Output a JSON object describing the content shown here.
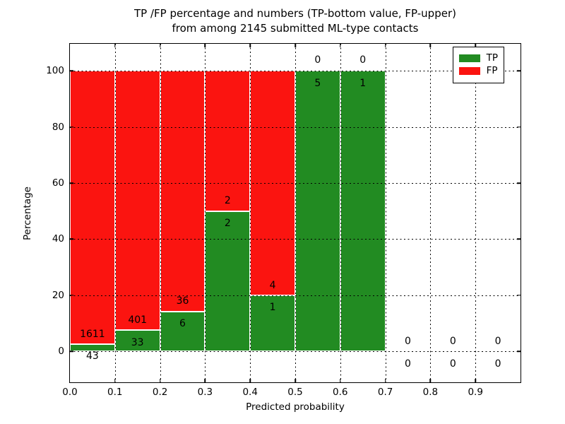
{
  "chart_data": {
    "type": "bar",
    "stacked": true,
    "title_line1": "TP /FP percentage and numbers (TP-bottom value, FP-upper)",
    "title_line2": "from among 2145 submitted ML-type contacts",
    "total_submitted_contacts": 2145,
    "xlabel": "Predicted probability",
    "ylabel": "Percentage",
    "xlim": [
      0.0,
      1.0
    ],
    "ylim": [
      -11,
      109.6
    ],
    "x_ticks": [
      0.0,
      0.1,
      0.2,
      0.3,
      0.4,
      0.5,
      0.6,
      0.7,
      0.8,
      0.9
    ],
    "x_tick_labels": [
      "0.0",
      "0.1",
      "0.2",
      "0.3",
      "0.4",
      "0.5",
      "0.6",
      "0.7",
      "0.8",
      "0.9"
    ],
    "y_ticks": [
      0,
      20,
      40,
      60,
      80,
      100
    ],
    "y_tick_labels": [
      "0",
      "20",
      "40",
      "60",
      "80",
      "100"
    ],
    "grid": true,
    "grid_color": "#000000",
    "bar_edge_color": "#ffffff",
    "colors": {
      "tp": "#228b22",
      "fp": "#fb1410"
    },
    "legend": {
      "position": "upper right",
      "entries": [
        {
          "label": "TP",
          "color": "#228b22"
        },
        {
          "label": "FP",
          "color": "#fb1410"
        }
      ]
    },
    "bins": [
      {
        "x_start": 0.0,
        "x_end": 0.1,
        "tp_count": 43,
        "fp_count": 1611,
        "tp_pct": 2.6,
        "fp_pct": 97.4
      },
      {
        "x_start": 0.1,
        "x_end": 0.2,
        "tp_count": 33,
        "fp_count": 401,
        "tp_pct": 7.6,
        "fp_pct": 92.4
      },
      {
        "x_start": 0.2,
        "x_end": 0.3,
        "tp_count": 6,
        "fp_count": 36,
        "tp_pct": 14.3,
        "fp_pct": 85.7
      },
      {
        "x_start": 0.3,
        "x_end": 0.4,
        "tp_count": 2,
        "fp_count": 2,
        "tp_pct": 50.0,
        "fp_pct": 50.0
      },
      {
        "x_start": 0.4,
        "x_end": 0.5,
        "tp_count": 1,
        "fp_count": 4,
        "tp_pct": 20.0,
        "fp_pct": 80.0
      },
      {
        "x_start": 0.5,
        "x_end": 0.6,
        "tp_count": 5,
        "fp_count": 0,
        "tp_pct": 100.0,
        "fp_pct": 0.0
      },
      {
        "x_start": 0.6,
        "x_end": 0.7,
        "tp_count": 1,
        "fp_count": 0,
        "tp_pct": 100.0,
        "fp_pct": 0.0
      },
      {
        "x_start": 0.7,
        "x_end": 0.8,
        "tp_count": 0,
        "fp_count": 0,
        "tp_pct": 0.0,
        "fp_pct": 0.0
      },
      {
        "x_start": 0.8,
        "x_end": 0.9,
        "tp_count": 0,
        "fp_count": 0,
        "tp_pct": 0.0,
        "fp_pct": 0.0
      },
      {
        "x_start": 0.9,
        "x_end": 1.0,
        "tp_count": 0,
        "fp_count": 0,
        "tp_pct": 0.0,
        "fp_pct": 0.0
      }
    ]
  }
}
